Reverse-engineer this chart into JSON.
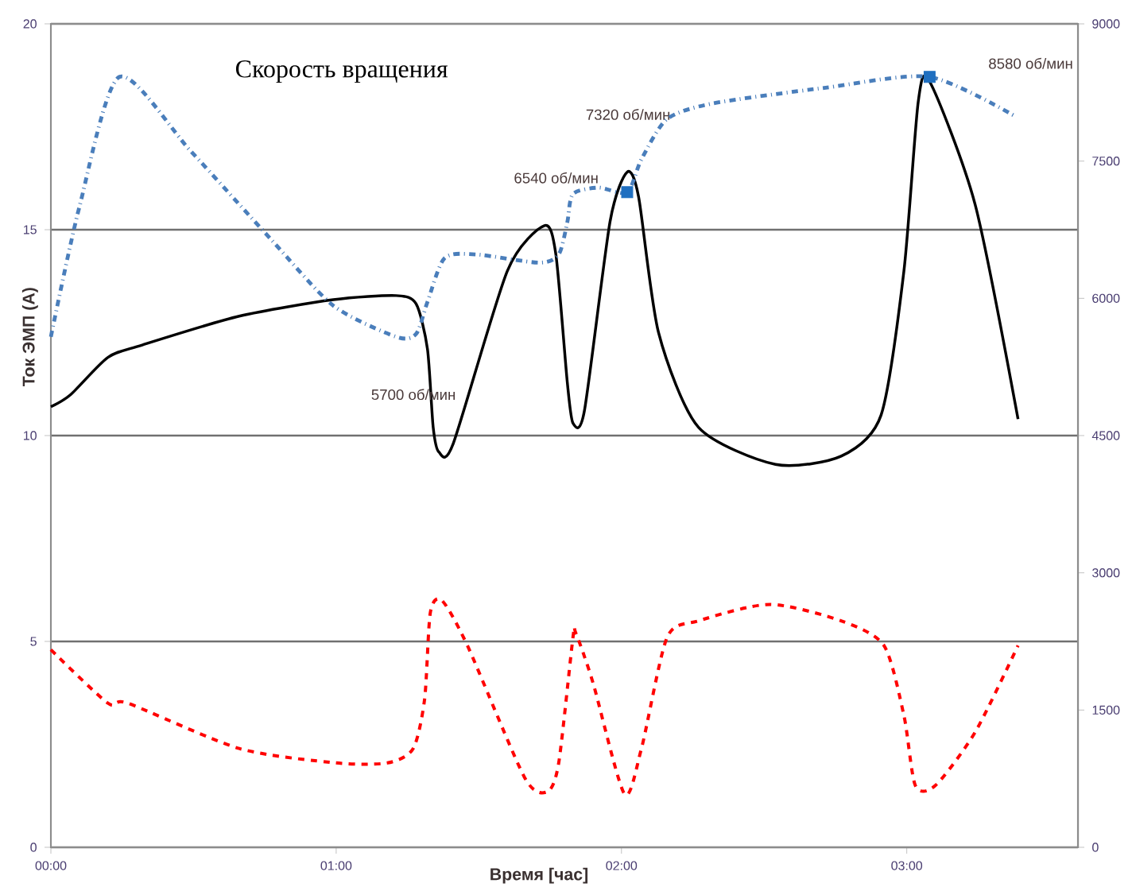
{
  "chart_data": {
    "type": "line",
    "xlabel": "Время [час]",
    "ylabel": "Ток ЭМП  (А)",
    "annotations": [
      "Скорость вращения",
      "5700 об/мин",
      "6540 об/мин",
      "7320 об/мин",
      "8580 об/мин"
    ],
    "xlim": [
      0,
      3.6
    ],
    "xticks": [
      {
        "value": 0,
        "label": "00:00"
      },
      {
        "value": 1,
        "label": "01:00"
      },
      {
        "value": 2,
        "label": "02:00"
      },
      {
        "value": 3,
        "label": "03:00"
      }
    ],
    "ylim": [
      0,
      20
    ],
    "yticks": [
      0,
      5,
      10,
      15,
      20
    ],
    "y2lim": [
      0,
      9000
    ],
    "y2ticks": [
      0,
      1500,
      3000,
      4500,
      6000,
      7500,
      9000
    ],
    "grid": "y",
    "series": [
      {
        "color": "#000000",
        "line_style": "solid",
        "marker": "none",
        "x": [
          0,
          0.07,
          0.2,
          0.32,
          0.66,
          0.99,
          1.21,
          1.28,
          1.32,
          1.34,
          1.36,
          1.41,
          1.6,
          1.73,
          1.77,
          1.81,
          1.83,
          1.87,
          1.96,
          2.02,
          2.06,
          2.13,
          2.27,
          2.54,
          2.77,
          2.91,
          2.99,
          3.04,
          3.08,
          3.24,
          3.39
        ],
        "values": [
          10.7,
          11.0,
          11.9,
          12.2,
          12.9,
          13.3,
          13.4,
          13.2,
          12.1,
          10.2,
          9.6,
          9.8,
          14.0,
          15.1,
          14.4,
          11.3,
          10.3,
          10.6,
          15.2,
          16.4,
          15.8,
          12.5,
          10.2,
          9.3,
          9.5,
          10.5,
          14.0,
          18.1,
          18.6,
          15.6,
          10.4
        ]
      },
      {
        "color": "#ff0000",
        "line_style": "dashed",
        "marker": "none",
        "x": [
          0,
          0.2,
          0.27,
          0.66,
          1.0,
          1.18,
          1.27,
          1.31,
          1.33,
          1.37,
          1.46,
          1.66,
          1.74,
          1.78,
          1.83,
          1.84,
          1.9,
          2.01,
          2.07,
          2.16,
          2.27,
          2.52,
          2.77,
          2.92,
          2.99,
          3.03,
          3.1,
          3.24,
          3.39
        ],
        "values": [
          4.8,
          3.5,
          3.5,
          2.4,
          2.05,
          2.05,
          2.4,
          3.6,
          5.7,
          6.0,
          4.9,
          1.7,
          1.35,
          2.05,
          5.1,
          5.2,
          4.0,
          1.3,
          2.4,
          5.1,
          5.5,
          5.9,
          5.5,
          4.9,
          3.2,
          1.5,
          1.5,
          2.8,
          4.9
        ]
      },
      {
        "axis": "y2",
        "color": "#4a7ebb",
        "line_style": "dashdot",
        "marker": "none",
        "x": [
          0,
          0.1,
          0.24,
          0.49,
          0.77,
          0.99,
          1.21,
          1.28,
          1.32,
          1.38,
          1.49,
          1.71,
          1.78,
          1.81,
          1.83,
          1.92,
          2.02,
          2.07,
          2.16,
          2.32,
          2.71,
          3.08,
          3.38
        ],
        "values": [
          5580,
          7000,
          8420,
          7610,
          6650,
          5920,
          5580,
          5610,
          5960,
          6440,
          6480,
          6390,
          6480,
          6830,
          7140,
          7210,
          7160,
          7520,
          7960,
          8130,
          8300,
          8420,
          7990
        ]
      },
      {
        "type": "scatter",
        "axis": "y2",
        "color": "#1f6fc0",
        "marker": "square",
        "x": [
          2.02,
          3.08
        ],
        "values": [
          7160,
          8420
        ]
      }
    ]
  }
}
